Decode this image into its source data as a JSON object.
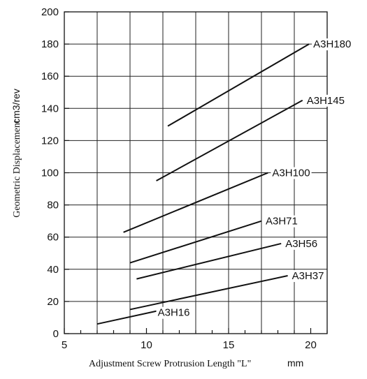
{
  "chart_data": {
    "type": "line",
    "xlabel": "Adjustment Screw Protrusion Length \"L\"",
    "xlabel_unit": "mm",
    "ylabel": "Geometric Displacement",
    "ylabel_unit": "cm3/rev",
    "xlim": [
      5,
      21
    ],
    "ylim": [
      0,
      200
    ],
    "x_ticks": [
      5,
      10,
      15,
      20
    ],
    "y_ticks": [
      0,
      20,
      40,
      60,
      80,
      100,
      120,
      140,
      160,
      180,
      200
    ],
    "x_grid_step": 2,
    "grid": true,
    "series": [
      {
        "name": "A3H180",
        "x": [
          11.3,
          19.9
        ],
        "y": [
          129,
          180
        ]
      },
      {
        "name": "A3H145",
        "x": [
          10.6,
          19.5
        ],
        "y": [
          95,
          145
        ]
      },
      {
        "name": "A3H100",
        "x": [
          8.6,
          17.4
        ],
        "y": [
          63,
          100
        ]
      },
      {
        "name": "A3H71",
        "x": [
          9.0,
          17.0
        ],
        "y": [
          44,
          70
        ]
      },
      {
        "name": "A3H56",
        "x": [
          9.4,
          18.2
        ],
        "y": [
          34,
          56
        ]
      },
      {
        "name": "A3H37",
        "x": [
          9.0,
          18.6
        ],
        "y": [
          15,
          36
        ]
      },
      {
        "name": "A3H16",
        "x": [
          7.0,
          10.6
        ],
        "y": [
          6,
          14
        ]
      }
    ]
  }
}
